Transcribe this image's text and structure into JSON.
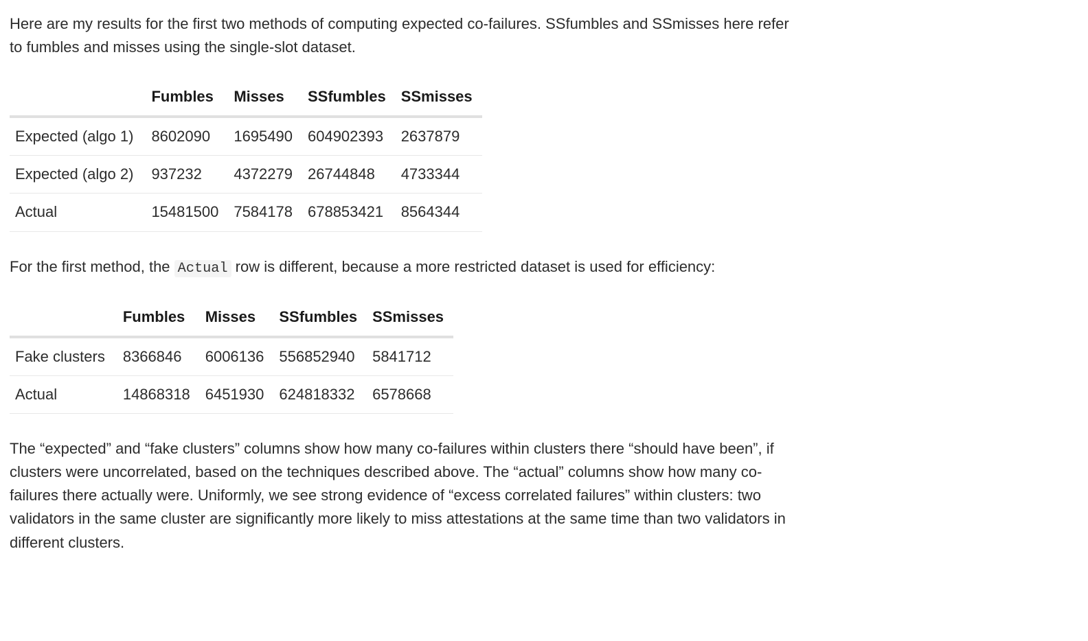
{
  "para1": "Here are my results for the first two methods of computing expected co-failures. SSfumbles and SSmisses here refer to fumbles and misses using the single-slot dataset.",
  "table1": {
    "columns": [
      "",
      "Fumbles",
      "Misses",
      "SSfumbles",
      "SSmisses"
    ],
    "rows": [
      [
        "Expected (algo 1)",
        "8602090",
        "1695490",
        "604902393",
        "2637879"
      ],
      [
        "Expected (algo 2)",
        "937232",
        "4372279",
        "26744848",
        "4733344"
      ],
      [
        "Actual",
        "15481500",
        "7584178",
        "678853421",
        "8564344"
      ]
    ]
  },
  "para2_pre": "For the first method, the ",
  "para2_code": "Actual",
  "para2_post": " row is different, because a more restricted dataset is used for efficiency:",
  "table2": {
    "columns": [
      "",
      "Fumbles",
      "Misses",
      "SSfumbles",
      "SSmisses"
    ],
    "rows": [
      [
        "Fake clusters",
        "8366846",
        "6006136",
        "556852940",
        "5841712"
      ],
      [
        "Actual",
        "14868318",
        "6451930",
        "624818332",
        "6578668"
      ]
    ]
  },
  "para3": "The “expected” and “fake clusters” columns show how many co-failures within clusters there “should have been”, if clusters were uncorrelated, based on the techniques described above. The “actual” columns show how many co-failures there actually were. Uniformly, we see strong evidence of “excess correlated failures” within clusters: two validators in the same cluster are significantly more likely to miss attestations at the same time than two validators in different clusters."
}
